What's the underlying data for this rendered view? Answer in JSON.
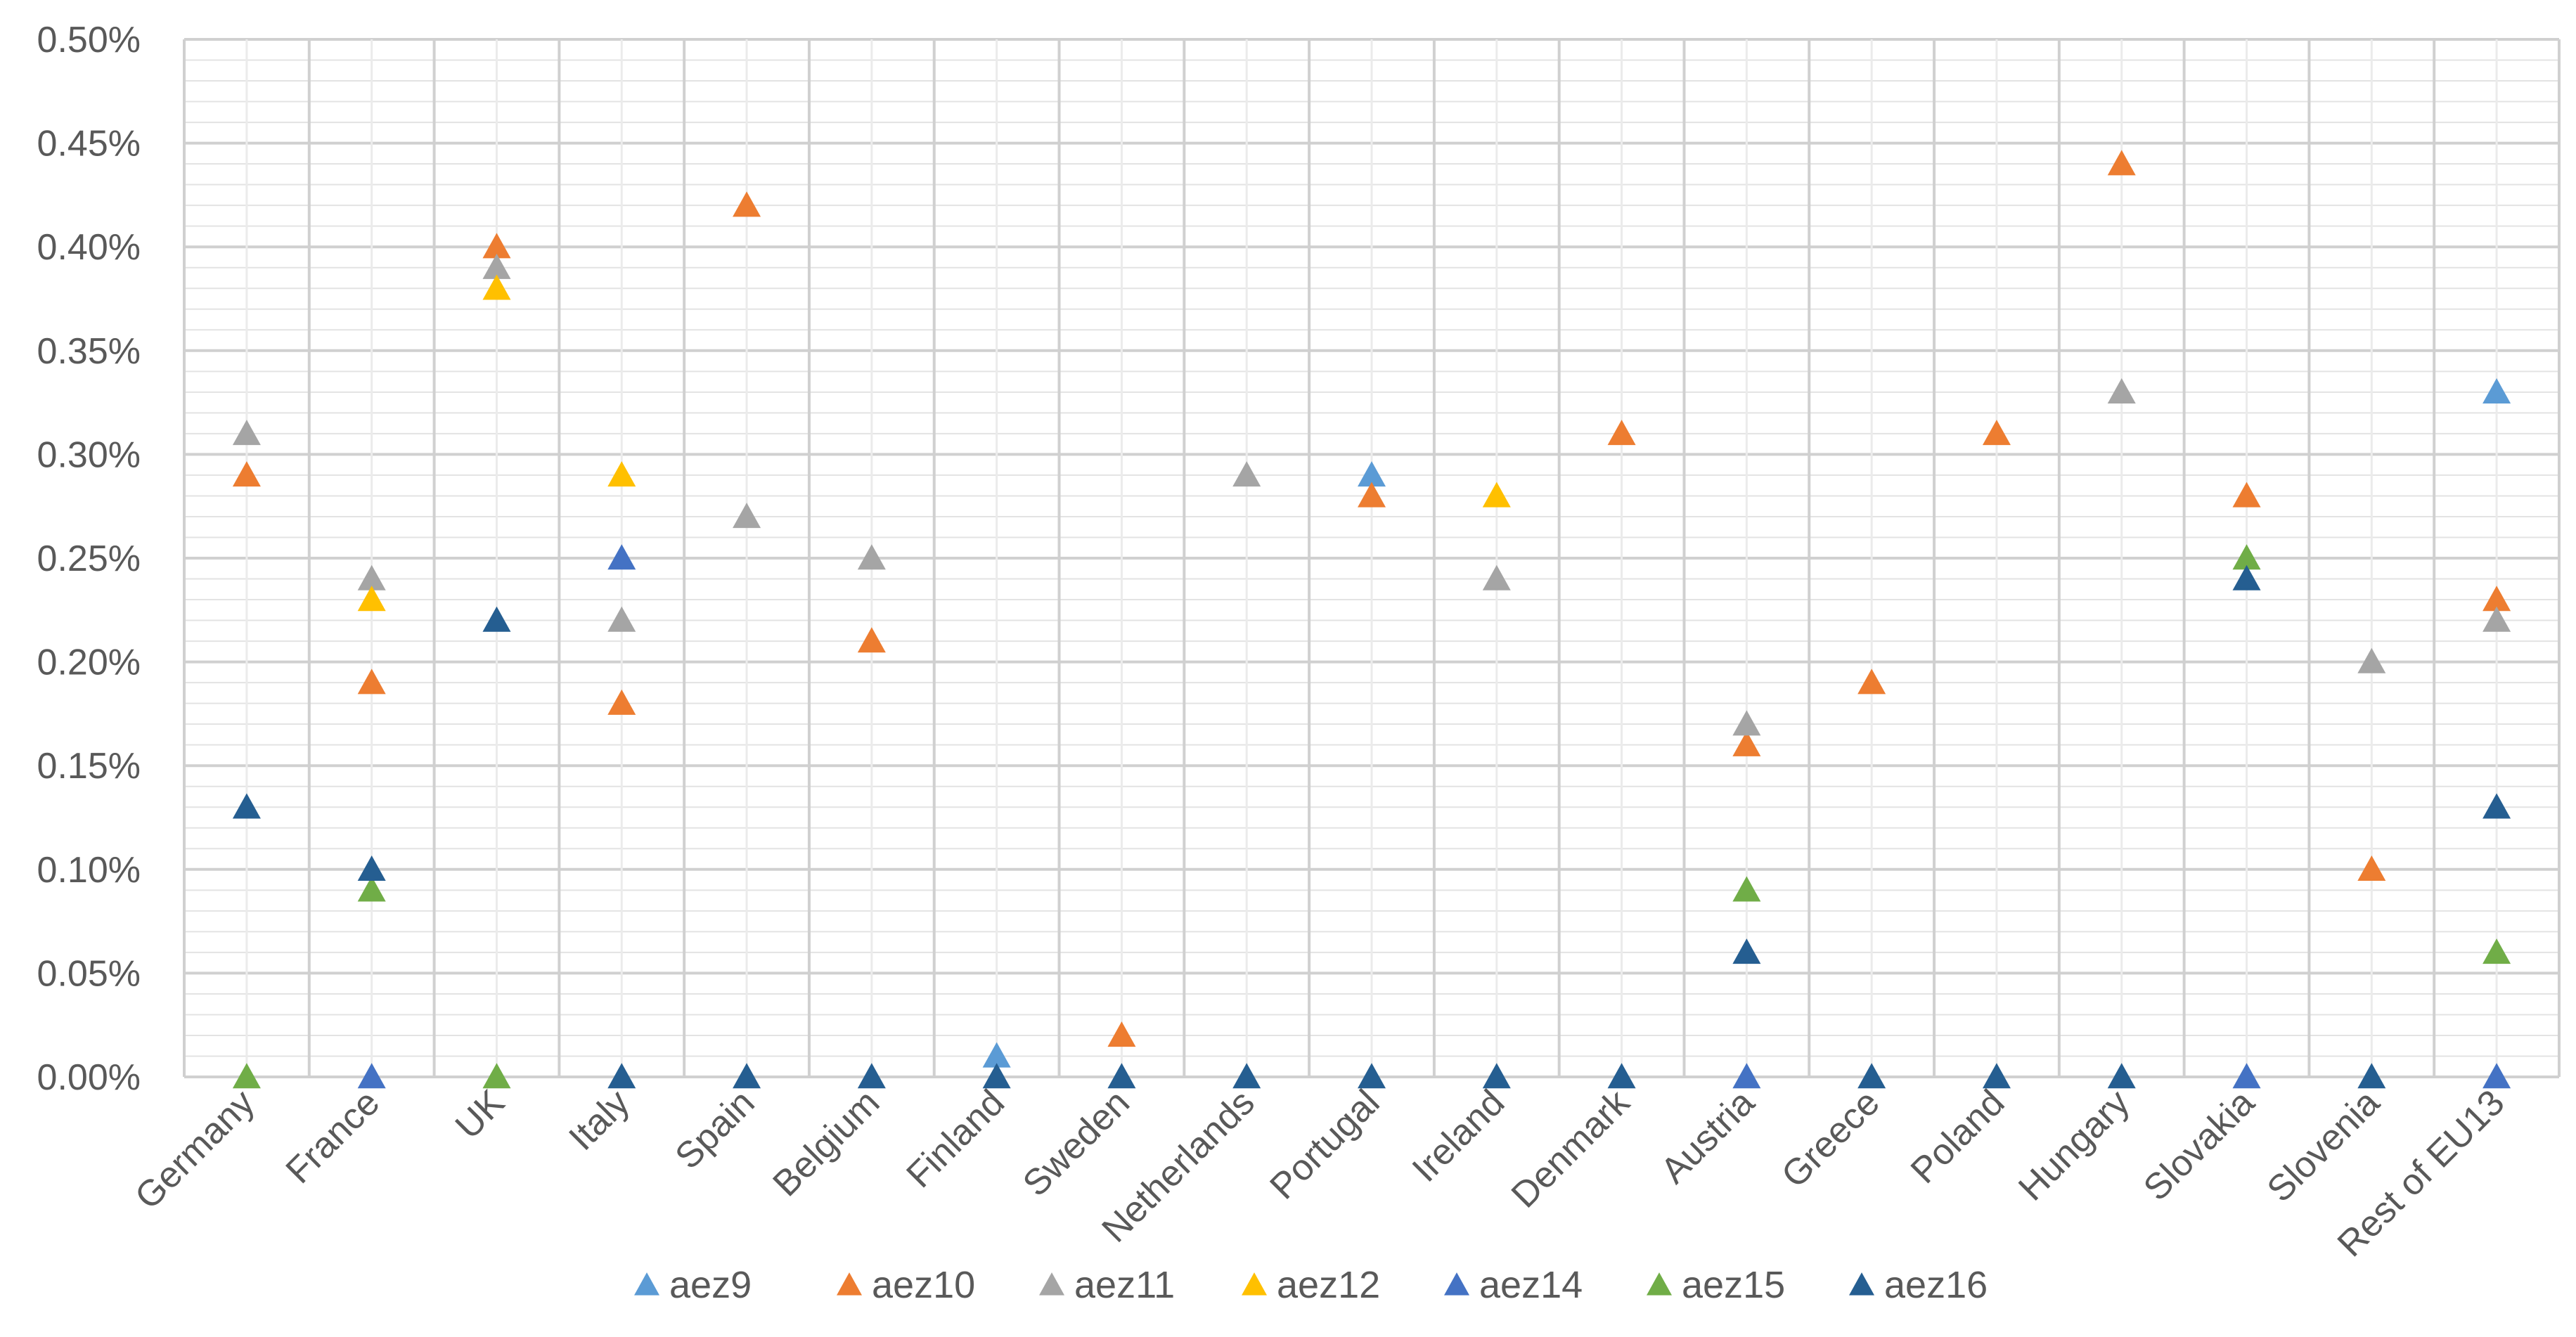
{
  "chart_data": {
    "type": "scatter",
    "title": "",
    "xlabel": "",
    "ylabel": "",
    "ylim": [
      0,
      0.005
    ],
    "ytick_labels": [
      "0.00%",
      "0.05%",
      "0.10%",
      "0.15%",
      "0.20%",
      "0.25%",
      "0.30%",
      "0.35%",
      "0.40%",
      "0.45%",
      "0.50%"
    ],
    "grid": true,
    "legend_position": "bottom",
    "marker": "triangle",
    "categories": [
      "Germany",
      "France",
      "UK",
      "Italy",
      "Spain",
      "Belgium",
      "Finland",
      "Sweden",
      "Netherlands",
      "Portugal",
      "Ireland",
      "Denmark",
      "Austria",
      "Greece",
      "Poland",
      "Hungary",
      "Slovakia",
      "Slovenia",
      "Rest of EU13"
    ],
    "series": [
      {
        "name": "aez9",
        "color": "#5b9bd5",
        "values": [
          null,
          null,
          null,
          null,
          null,
          null,
          0.0001,
          null,
          null,
          0.0029,
          null,
          null,
          null,
          null,
          null,
          null,
          null,
          null,
          0.0033
        ]
      },
      {
        "name": "aez10",
        "color": "#ed7d31",
        "values": [
          0.0029,
          0.0019,
          0.004,
          0.0018,
          0.0042,
          0.0021,
          null,
          0.0002,
          null,
          0.0028,
          null,
          0.0031,
          0.0016,
          0.0019,
          0.0031,
          0.0044,
          0.0028,
          0.001,
          0.0023
        ]
      },
      {
        "name": "aez11",
        "color": "#a5a5a5",
        "values": [
          0.0031,
          0.0024,
          0.0039,
          0.0022,
          0.0027,
          0.0025,
          null,
          null,
          0.0029,
          null,
          0.0024,
          null,
          0.0017,
          null,
          null,
          0.0033,
          null,
          0.002,
          0.0022
        ]
      },
      {
        "name": "aez12",
        "color": "#ffc000",
        "values": [
          null,
          0.0023,
          0.0038,
          0.0029,
          null,
          null,
          null,
          null,
          null,
          null,
          0.0028,
          null,
          null,
          null,
          null,
          null,
          null,
          null,
          null
        ]
      },
      {
        "name": "aez14",
        "color": "#4472c4",
        "values": [
          null,
          0.0,
          null,
          0.0025,
          null,
          null,
          null,
          null,
          null,
          null,
          null,
          null,
          0.0,
          null,
          null,
          null,
          0.0,
          null,
          0.0
        ]
      },
      {
        "name": "aez15",
        "color": "#70ad47",
        "values": [
          0.0,
          0.0009,
          0.0,
          null,
          null,
          null,
          null,
          null,
          null,
          null,
          null,
          null,
          0.0009,
          null,
          null,
          null,
          0.0025,
          null,
          0.0006
        ]
      },
      {
        "name": "aez16",
        "color": "#255e91",
        "values": [
          0.0013,
          0.001,
          0.0022,
          0.0,
          0.0,
          0.0,
          0.0,
          0.0,
          0.0,
          0.0,
          0.0,
          0.0,
          0.0006,
          0.0,
          0.0,
          0.0,
          0.0024,
          0.0,
          0.0013
        ]
      }
    ]
  }
}
